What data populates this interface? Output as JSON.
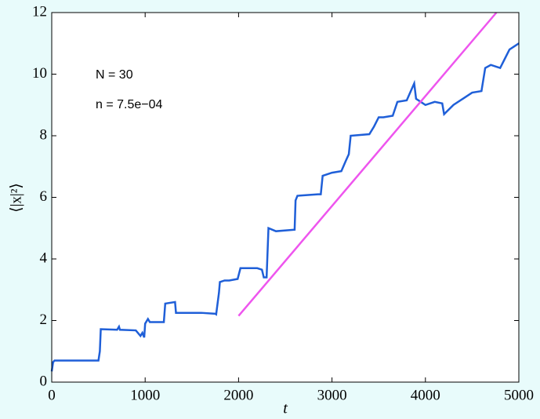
{
  "chart_data": {
    "type": "line",
    "xlabel": "t",
    "ylabel": "⟨|x|²⟩",
    "annotations": [
      "N = 30",
      "n = 7.5e−04"
    ],
    "xlim": [
      0,
      5000
    ],
    "ylim": [
      0,
      12
    ],
    "xticks": [
      0,
      1000,
      2000,
      3000,
      4000,
      5000
    ],
    "yticks": [
      0,
      2,
      4,
      6,
      8,
      10,
      12
    ],
    "series": [
      {
        "color": "#1f5fd8",
        "x": [
          0,
          15,
          30,
          500,
          515,
          525,
          700,
          720,
          730,
          900,
          950,
          970,
          990,
          1000,
          1030,
          1050,
          1200,
          1215,
          1320,
          1330,
          1600,
          1750,
          1760,
          1790,
          1800,
          1850,
          1900,
          1990,
          2020,
          2200,
          2250,
          2270,
          2300,
          2320,
          2400,
          2600,
          2610,
          2630,
          2850,
          2880,
          2900,
          3000,
          3100,
          3150,
          3180,
          3200,
          3400,
          3450,
          3500,
          3550,
          3650,
          3700,
          3800,
          3880,
          3900,
          3950,
          4000,
          4100,
          4180,
          4200,
          4300,
          4400,
          4500,
          4600,
          4640,
          4700,
          4800,
          4850,
          4900,
          4950,
          5000
        ],
        "values": [
          0.35,
          0.65,
          0.7,
          0.7,
          1.0,
          1.72,
          1.7,
          1.8,
          1.7,
          1.68,
          1.5,
          1.6,
          1.45,
          1.9,
          2.05,
          1.95,
          1.95,
          2.55,
          2.6,
          2.25,
          2.25,
          2.22,
          2.2,
          2.9,
          3.25,
          3.3,
          3.3,
          3.35,
          3.7,
          3.7,
          3.65,
          3.4,
          3.4,
          5.0,
          4.9,
          4.95,
          5.9,
          6.05,
          6.1,
          6.1,
          6.7,
          6.8,
          6.85,
          7.2,
          7.4,
          8.0,
          8.05,
          8.3,
          8.6,
          8.6,
          8.65,
          9.1,
          9.15,
          9.7,
          9.2,
          9.1,
          9.0,
          9.1,
          9.05,
          8.7,
          9.0,
          9.2,
          9.4,
          9.45,
          10.2,
          10.3,
          10.2,
          10.5,
          10.8,
          10.9,
          11.0
        ]
      },
      {
        "color": "#ee55ee",
        "x": [
          2000,
          4760
        ],
        "values": [
          2.15,
          12
        ]
      }
    ]
  }
}
